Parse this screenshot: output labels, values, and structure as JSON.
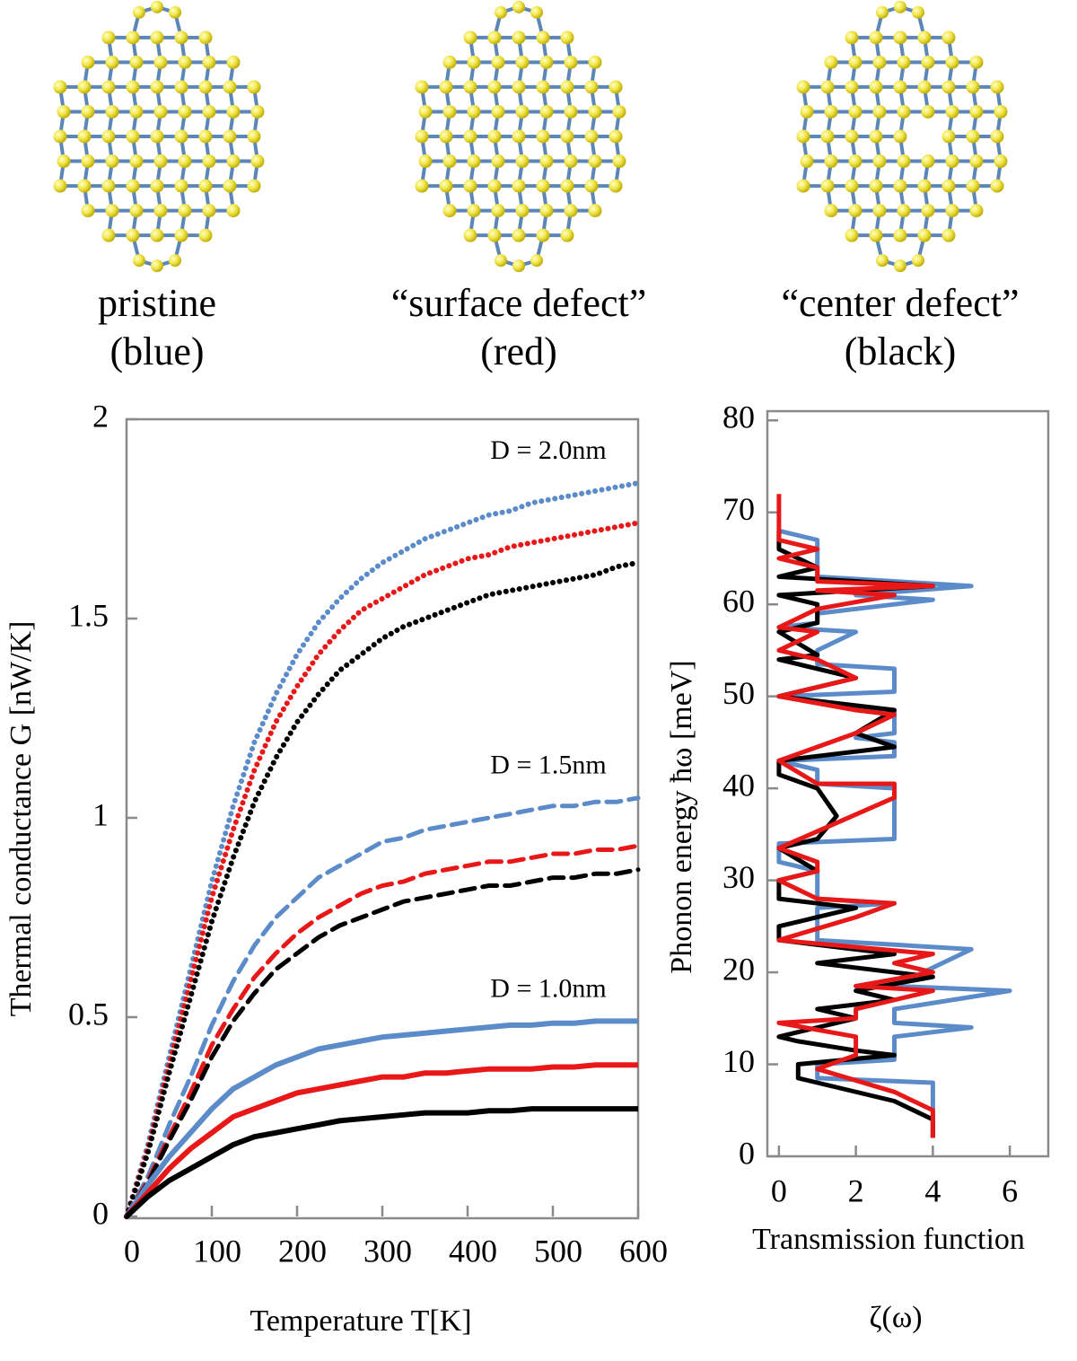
{
  "structures": [
    {
      "label": "pristine",
      "note": "(blue)"
    },
    {
      "label": "“surface defect”",
      "note": "(red)"
    },
    {
      "label": "“center defect”",
      "note": "(black)"
    }
  ],
  "chart_data": [
    {
      "type": "line",
      "xlabel": "Temperature T[K]",
      "ylabel": "Thermal conductance G [nW/K]",
      "xlim": [
        0,
        600
      ],
      "xticks": [
        0,
        100,
        200,
        300,
        400,
        500,
        600
      ],
      "ylim": [
        0,
        2
      ],
      "yticks": [
        0,
        0.5,
        1,
        1.5,
        2
      ],
      "annotations": [
        "D = 2.0nm",
        "D = 1.5nm",
        "D = 1.0nm"
      ],
      "x": [
        0,
        25,
        50,
        75,
        100,
        125,
        150,
        175,
        200,
        225,
        250,
        275,
        300,
        325,
        350,
        375,
        400,
        425,
        450,
        475,
        500,
        525,
        550,
        575,
        600
      ],
      "series": [
        {
          "color": "#5b8cc9",
          "dash": "dotted",
          "values": [
            0,
            0.18,
            0.4,
            0.62,
            0.84,
            1.03,
            1.19,
            1.31,
            1.41,
            1.49,
            1.55,
            1.6,
            1.64,
            1.67,
            1.7,
            1.72,
            1.74,
            1.76,
            1.77,
            1.79,
            1.8,
            1.81,
            1.82,
            1.83,
            1.84
          ]
        },
        {
          "color": "#e81818",
          "dash": "dotted",
          "values": [
            0,
            0.17,
            0.38,
            0.59,
            0.8,
            0.97,
            1.12,
            1.24,
            1.33,
            1.41,
            1.47,
            1.52,
            1.55,
            1.58,
            1.61,
            1.63,
            1.65,
            1.66,
            1.68,
            1.69,
            1.7,
            1.71,
            1.72,
            1.73,
            1.74
          ]
        },
        {
          "color": "#000000",
          "dash": "dotted",
          "values": [
            0,
            0.16,
            0.36,
            0.55,
            0.74,
            0.9,
            1.04,
            1.15,
            1.24,
            1.31,
            1.37,
            1.41,
            1.45,
            1.48,
            1.5,
            1.52,
            1.54,
            1.56,
            1.57,
            1.58,
            1.59,
            1.6,
            1.61,
            1.63,
            1.64
          ]
        },
        {
          "color": "#5b8cc9",
          "dash": "dashed",
          "values": [
            0,
            0.1,
            0.23,
            0.35,
            0.48,
            0.59,
            0.68,
            0.75,
            0.8,
            0.85,
            0.88,
            0.91,
            0.94,
            0.95,
            0.97,
            0.98,
            0.99,
            1.0,
            1.01,
            1.02,
            1.03,
            1.03,
            1.04,
            1.04,
            1.05
          ]
        },
        {
          "color": "#e81818",
          "dash": "dashed",
          "values": [
            0,
            0.09,
            0.2,
            0.31,
            0.43,
            0.52,
            0.6,
            0.66,
            0.71,
            0.75,
            0.78,
            0.81,
            0.83,
            0.84,
            0.86,
            0.87,
            0.88,
            0.89,
            0.89,
            0.9,
            0.91,
            0.91,
            0.92,
            0.92,
            0.93
          ]
        },
        {
          "color": "#000000",
          "dash": "dashed",
          "values": [
            0,
            0.085,
            0.19,
            0.29,
            0.4,
            0.49,
            0.56,
            0.62,
            0.66,
            0.7,
            0.73,
            0.75,
            0.77,
            0.79,
            0.8,
            0.81,
            0.82,
            0.83,
            0.83,
            0.84,
            0.85,
            0.85,
            0.86,
            0.86,
            0.87
          ]
        },
        {
          "color": "#5b8cc9",
          "dash": "solid",
          "values": [
            0,
            0.08,
            0.15,
            0.21,
            0.27,
            0.32,
            0.35,
            0.38,
            0.4,
            0.42,
            0.43,
            0.44,
            0.45,
            0.455,
            0.46,
            0.465,
            0.47,
            0.475,
            0.48,
            0.48,
            0.485,
            0.485,
            0.49,
            0.49,
            0.49
          ]
        },
        {
          "color": "#e81818",
          "dash": "solid",
          "values": [
            0,
            0.06,
            0.12,
            0.17,
            0.21,
            0.25,
            0.27,
            0.29,
            0.31,
            0.32,
            0.33,
            0.34,
            0.35,
            0.35,
            0.36,
            0.36,
            0.365,
            0.37,
            0.37,
            0.37,
            0.375,
            0.375,
            0.38,
            0.38,
            0.38
          ]
        },
        {
          "color": "#000000",
          "dash": "solid",
          "values": [
            0,
            0.05,
            0.09,
            0.12,
            0.15,
            0.18,
            0.2,
            0.21,
            0.22,
            0.23,
            0.24,
            0.245,
            0.25,
            0.255,
            0.26,
            0.26,
            0.26,
            0.265,
            0.265,
            0.27,
            0.27,
            0.27,
            0.27,
            0.27,
            0.27
          ]
        }
      ]
    },
    {
      "type": "path",
      "xlabel": "Transmission function",
      "xlabel_symbol": "ζ(ω)",
      "ylabel": "Phonon energy  ħω [meV]",
      "xlim": [
        -0.3,
        7
      ],
      "xticks": [
        0,
        2,
        4,
        6
      ],
      "ylim": [
        0,
        81
      ],
      "yticks": [
        0,
        10,
        20,
        30,
        40,
        50,
        60,
        70,
        80
      ],
      "series": [
        {
          "color": "#5b8cc9",
          "x": [
            4,
            4,
            1,
            1,
            3,
            3,
            5,
            3,
            3,
            6,
            3,
            5,
            3,
            1,
            1,
            1,
            3,
            1,
            1,
            0,
            0,
            3,
            3,
            1,
            1,
            0,
            3,
            3,
            2,
            3,
            3,
            2,
            0,
            3,
            3,
            1,
            1,
            2,
            0,
            1,
            1,
            4,
            2,
            5,
            1,
            1,
            1,
            0
          ],
          "y": [
            2,
            8,
            8.5,
            10,
            10.5,
            13,
            14,
            14.5,
            16,
            18,
            18.5,
            22.5,
            23,
            23.5,
            25,
            27,
            27.5,
            28,
            31,
            32,
            34,
            34.5,
            40,
            40.5,
            42,
            43,
            43.5,
            45,
            45.5,
            46,
            48.5,
            49,
            50,
            50.5,
            53,
            53.5,
            55,
            57,
            57.5,
            58,
            59,
            60.5,
            61,
            62,
            63,
            66,
            67,
            68
          ]
        },
        {
          "color": "#000000",
          "x": [
            4,
            4,
            3,
            1,
            0.5,
            0.5,
            3,
            2,
            0.5,
            0,
            1,
            2,
            1,
            3,
            2,
            4,
            1,
            3,
            0,
            0,
            1,
            2,
            0,
            0,
            1,
            0,
            1,
            1.5,
            1,
            0,
            0,
            3,
            2,
            3,
            1,
            0,
            1,
            2,
            0,
            1,
            0,
            1,
            1,
            0,
            4,
            0,
            1,
            0,
            0
          ],
          "y": [
            2,
            4,
            6,
            8,
            8.5,
            10,
            11,
            11.5,
            12.5,
            13,
            14,
            15,
            16,
            17,
            18,
            19.5,
            21,
            22,
            23.5,
            25,
            26,
            27,
            28,
            30,
            31,
            33.5,
            34.5,
            37,
            40,
            41.5,
            43,
            44.5,
            46,
            48.5,
            49.5,
            50,
            51,
            52,
            54,
            54.5,
            57,
            58,
            60,
            61,
            62,
            63,
            64,
            66,
            68
          ]
        },
        {
          "color": "#e81818",
          "x": [
            4,
            4,
            3,
            1,
            2,
            2,
            0,
            2,
            2,
            4,
            2,
            4,
            3,
            4,
            0,
            2,
            3,
            1,
            0,
            1,
            1,
            0,
            3,
            3,
            1,
            0,
            2,
            3,
            2,
            0,
            2,
            1,
            0,
            1,
            0,
            1,
            3,
            1,
            4,
            1,
            1,
            0,
            1,
            0,
            0
          ],
          "y": [
            2,
            5,
            7,
            9.5,
            11,
            13,
            14.5,
            15,
            16,
            18,
            18.5,
            20,
            21,
            22,
            23.5,
            26,
            27.5,
            28,
            30,
            31,
            32,
            33.5,
            39,
            40.5,
            40.5,
            43,
            46,
            48,
            48.5,
            50,
            52,
            54,
            55,
            57,
            57.5,
            59.5,
            61,
            61.5,
            62,
            62.5,
            64,
            65,
            66,
            67,
            72
          ]
        }
      ]
    }
  ]
}
